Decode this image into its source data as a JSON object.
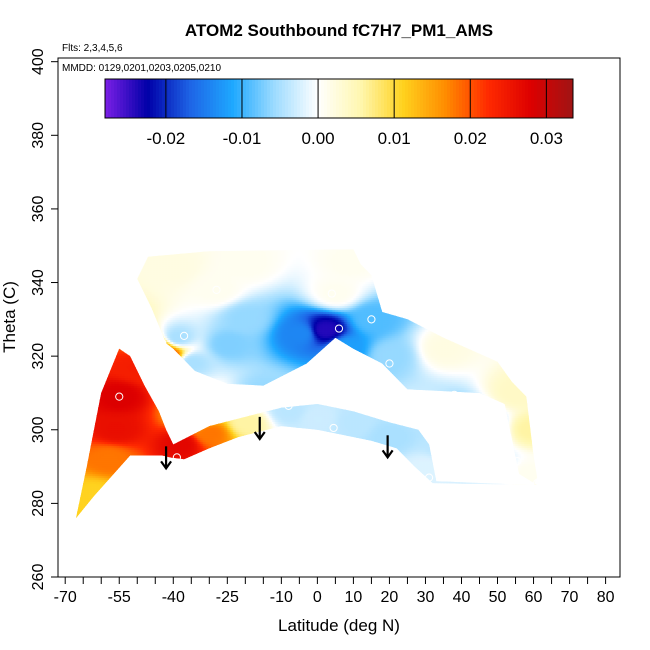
{
  "chart_data": {
    "type": "heatmap",
    "title": "ATOM2 Southbound fC7H7_PM1_AMS",
    "notes": {
      "flights": "Flts: 2,3,4,5,6",
      "dates": "MMDD: 0129,0201,0203,0205,0210"
    },
    "xlabel": "Latitude (deg N)",
    "ylabel": "Theta (C)",
    "xlim": [
      -72,
      84
    ],
    "ylim": [
      260,
      401
    ],
    "x_ticks": [
      -70,
      -55,
      -40,
      -25,
      -10,
      0,
      10,
      20,
      30,
      40,
      50,
      60,
      70,
      80
    ],
    "x_tick_labels": [
      "-70",
      "-55",
      "-40",
      "-25",
      "-10",
      "0",
      "10",
      "20",
      "30",
      "40",
      "50",
      "60",
      "70",
      "80"
    ],
    "x_minor_ticks": [
      -65,
      -60,
      -50,
      -45,
      -35,
      -30,
      -20,
      -15,
      -5,
      5,
      15,
      25,
      35,
      45,
      55,
      65,
      75
    ],
    "y_ticks": [
      260,
      280,
      300,
      320,
      340,
      360,
      380,
      400
    ],
    "y_tick_labels": [
      "260",
      "280",
      "300",
      "320",
      "340",
      "360",
      "380",
      "400"
    ],
    "colorbar": {
      "range": [
        -0.028,
        0.0335
      ],
      "ticks": [
        -0.02,
        -0.01,
        0.0,
        0.01,
        0.02,
        0.03
      ],
      "tick_labels": [
        "-0.02",
        "-0.01",
        "0.00",
        "0.01",
        "0.02",
        "0.03"
      ],
      "placement": "top, inside plot",
      "colors": [
        "#7b1fe6",
        "#0000a8",
        "#1e64e6",
        "#1ea8ff",
        "#9fdcff",
        "#ffffff",
        "#fff7b0",
        "#ffd21e",
        "#ff8c00",
        "#ff2a00",
        "#dd0000",
        "#a01414"
      ]
    },
    "region_polygon": [
      [
        -67,
        276
      ],
      [
        -62,
        282
      ],
      [
        -52,
        293
      ],
      [
        -43,
        293
      ],
      [
        -41,
        292.5
      ],
      [
        -37,
        292
      ],
      [
        -30,
        295
      ],
      [
        -22,
        298
      ],
      [
        -10,
        301
      ],
      [
        0,
        300
      ],
      [
        5,
        299
      ],
      [
        15,
        297
      ],
      [
        22,
        295
      ],
      [
        27,
        290
      ],
      [
        32,
        285.5
      ],
      [
        61,
        285
      ],
      [
        56,
        288
      ],
      [
        52,
        307
      ],
      [
        45,
        310
      ],
      [
        25,
        311
      ],
      [
        18,
        318
      ],
      [
        10,
        322
      ],
      [
        5,
        325
      ],
      [
        -3,
        318
      ],
      [
        -15,
        312
      ],
      [
        -25,
        312.5
      ],
      [
        -34,
        316
      ],
      [
        -38,
        320
      ],
      [
        -40,
        322
      ],
      [
        -42,
        323.5
      ],
      [
        -46,
        333
      ],
      [
        -50,
        341
      ],
      [
        -47,
        347
      ],
      [
        -30,
        348.5
      ],
      [
        10,
        349
      ],
      [
        12,
        345
      ],
      [
        15,
        342
      ],
      [
        18,
        332
      ],
      [
        25,
        330
      ],
      [
        35,
        325
      ],
      [
        50,
        318.5
      ],
      [
        54,
        313
      ],
      [
        58,
        309
      ],
      [
        60,
        293
      ],
      [
        61,
        287
      ],
      [
        60,
        285
      ],
      [
        33,
        286
      ],
      [
        31,
        296
      ],
      [
        28,
        300
      ],
      [
        20,
        302
      ],
      [
        10,
        305
      ],
      [
        0,
        307
      ],
      [
        -10,
        306
      ],
      [
        -20,
        303.5
      ],
      [
        -30,
        301
      ],
      [
        -40,
        296
      ],
      [
        -42,
        300
      ],
      [
        -44,
        305
      ],
      [
        -48,
        312
      ],
      [
        -52,
        320
      ],
      [
        -55,
        322
      ],
      [
        -60,
        310
      ],
      [
        -62,
        300
      ],
      [
        -64,
        290
      ],
      [
        -67,
        276
      ]
    ],
    "value_field": [
      {
        "x": -55,
        "y": 309,
        "v": 0.028
      },
      {
        "x": -56,
        "y": 300,
        "v": 0.026
      },
      {
        "x": -58,
        "y": 292,
        "v": 0.018
      },
      {
        "x": -62,
        "y": 282,
        "v": 0.011
      },
      {
        "x": -51,
        "y": 317,
        "v": 0.024
      },
      {
        "x": -42,
        "y": 320,
        "v": 0.022
      },
      {
        "x": -44,
        "y": 322,
        "v": 0.016
      },
      {
        "x": -38,
        "y": 296,
        "v": 0.027
      },
      {
        "x": -30,
        "y": 299,
        "v": 0.018
      },
      {
        "x": -20,
        "y": 302,
        "v": 0.006
      },
      {
        "x": -33,
        "y": 303,
        "v": 0.009
      },
      {
        "x": 2,
        "y": 327,
        "v": -0.024
      },
      {
        "x": -5,
        "y": 326,
        "v": -0.014
      },
      {
        "x": 8,
        "y": 322,
        "v": -0.012
      },
      {
        "x": -20,
        "y": 330,
        "v": -0.006
      },
      {
        "x": -25,
        "y": 323,
        "v": -0.007
      },
      {
        "x": -35,
        "y": 318,
        "v": -0.005
      },
      {
        "x": -39,
        "y": 325,
        "v": -0.005
      },
      {
        "x": -28,
        "y": 338,
        "v": 0.001
      },
      {
        "x": -40,
        "y": 344,
        "v": 0.002
      },
      {
        "x": -20,
        "y": 345,
        "v": 0.001
      },
      {
        "x": 5,
        "y": 337,
        "v": 0.001
      },
      {
        "x": 9,
        "y": 345,
        "v": 0.001
      },
      {
        "x": 15,
        "y": 330,
        "v": -0.009
      },
      {
        "x": 20,
        "y": 320,
        "v": -0.006
      },
      {
        "x": 35,
        "y": 322,
        "v": 0.002
      },
      {
        "x": 55,
        "y": 310,
        "v": 0.004
      },
      {
        "x": 59,
        "y": 300,
        "v": 0.006
      },
      {
        "x": 41,
        "y": 302,
        "v": -0.01
      },
      {
        "x": 46,
        "y": 300,
        "v": -0.008
      },
      {
        "x": 35,
        "y": 296,
        "v": -0.004
      },
      {
        "x": 50,
        "y": 290,
        "v": -0.002
      },
      {
        "x": 58,
        "y": 288,
        "v": 0.001
      },
      {
        "x": 20,
        "y": 298,
        "v": -0.005
      },
      {
        "x": 10,
        "y": 302,
        "v": -0.004
      },
      {
        "x": 0,
        "y": 303,
        "v": -0.003
      },
      {
        "x": -8,
        "y": 305,
        "v": -0.004
      },
      {
        "x": -15,
        "y": 310,
        "v": -0.006
      },
      {
        "x": 28,
        "y": 306,
        "v": -0.003
      },
      {
        "x": 30,
        "y": 289,
        "v": -0.002
      }
    ],
    "sample_points": [
      {
        "x": -55,
        "y": 309
      },
      {
        "x": -43,
        "y": 323.5
      },
      {
        "x": -42,
        "y": 320
      },
      {
        "x": -37,
        "y": 325.5
      },
      {
        "x": -28,
        "y": 338
      },
      {
        "x": -39,
        "y": 292.5
      },
      {
        "x": -8,
        "y": 306.5
      },
      {
        "x": 4,
        "y": 337
      },
      {
        "x": 6,
        "y": 327.5
      },
      {
        "x": 15,
        "y": 330
      },
      {
        "x": 20,
        "y": 318
      },
      {
        "x": 4.5,
        "y": 300.5
      },
      {
        "x": 38,
        "y": 309.5
      },
      {
        "x": 31,
        "y": 306.5
      },
      {
        "x": 31,
        "y": 287
      },
      {
        "x": 55.5,
        "y": 291.5
      },
      {
        "x": 61,
        "y": 285.5
      }
    ],
    "arrows": [
      {
        "x": -42,
        "y_from": 295.5,
        "y_to": 289.5
      },
      {
        "x": -16,
        "y_from": 303.5,
        "y_to": 297.5
      },
      {
        "x": 19.5,
        "y_from": 298.5,
        "y_to": 292.5
      }
    ]
  }
}
